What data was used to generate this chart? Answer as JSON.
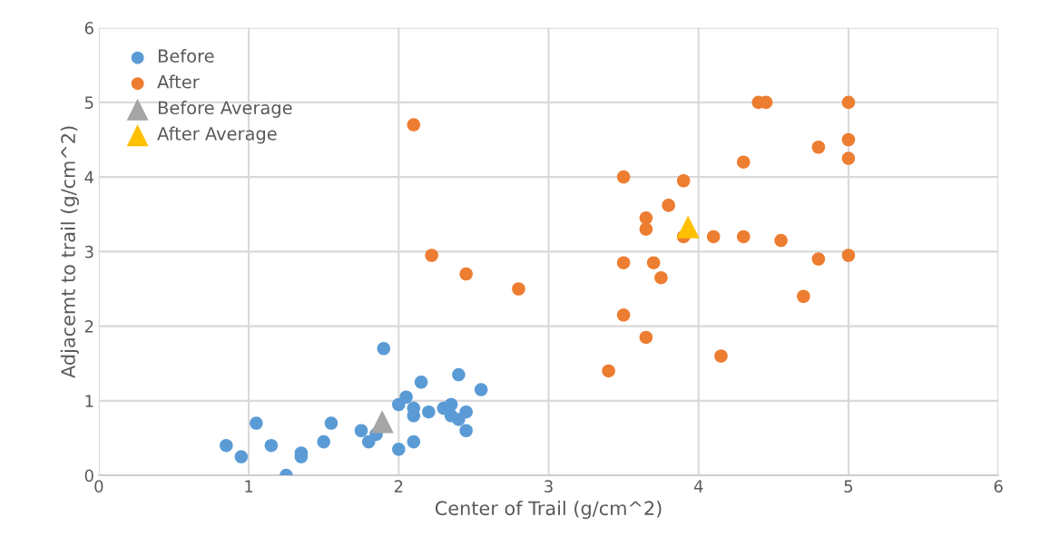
{
  "chart_data": {
    "type": "scatter",
    "xlabel": "Center of Trail (g/cm^2)",
    "ylabel": "Adjacemt to trail (g/cm^2)",
    "xlim": [
      0,
      6
    ],
    "ylim": [
      0,
      6
    ],
    "xticks": [
      0,
      1,
      2,
      3,
      4,
      5,
      6
    ],
    "yticks": [
      0,
      1,
      2,
      3,
      4,
      5,
      6
    ],
    "grid": true,
    "legend": "top left",
    "series": [
      {
        "name": "Before",
        "color": "#5b9bd5",
        "marker": "circle",
        "x": [
          0.85,
          0.95,
          1.05,
          1.15,
          1.25,
          1.35,
          1.35,
          1.5,
          1.55,
          1.75,
          1.8,
          1.85,
          1.9,
          2.0,
          2.0,
          2.05,
          2.1,
          2.1,
          2.1,
          2.15,
          2.2,
          2.3,
          2.35,
          2.35,
          2.4,
          2.4,
          2.45,
          2.45,
          2.55
        ],
        "values": [
          0.4,
          0.25,
          0.7,
          0.4,
          0.0,
          0.3,
          0.25,
          0.45,
          0.7,
          0.6,
          0.45,
          0.55,
          1.7,
          0.95,
          0.35,
          1.05,
          0.9,
          0.8,
          0.45,
          1.25,
          0.85,
          0.9,
          0.95,
          0.8,
          1.35,
          0.75,
          0.85,
          0.6,
          1.15
        ]
      },
      {
        "name": "After",
        "color": "#ed7d31",
        "marker": "circle",
        "x": [
          2.1,
          2.22,
          2.45,
          2.8,
          3.4,
          3.5,
          3.5,
          3.5,
          3.65,
          3.65,
          3.65,
          3.7,
          3.75,
          3.8,
          3.9,
          3.9,
          4.1,
          4.15,
          4.3,
          4.3,
          4.4,
          4.45,
          4.55,
          4.7,
          4.8,
          4.8,
          5.0,
          5.0,
          5.0,
          5.0
        ],
        "values": [
          4.7,
          2.95,
          2.7,
          2.5,
          1.4,
          4.0,
          2.85,
          2.15,
          3.45,
          3.3,
          1.85,
          2.85,
          2.65,
          3.62,
          3.95,
          3.2,
          3.2,
          1.6,
          4.2,
          3.2,
          5.0,
          5.0,
          3.15,
          2.4,
          4.4,
          2.9,
          5.0,
          4.5,
          4.25,
          2.95
        ]
      },
      {
        "name": "Before Average",
        "color": "#a5a5a5",
        "marker": "triangle",
        "x": [
          1.89
        ],
        "values": [
          0.72
        ]
      },
      {
        "name": "After Average",
        "color": "#ffc000",
        "marker": "triangle",
        "x": [
          3.93
        ],
        "values": [
          3.33
        ]
      }
    ]
  }
}
